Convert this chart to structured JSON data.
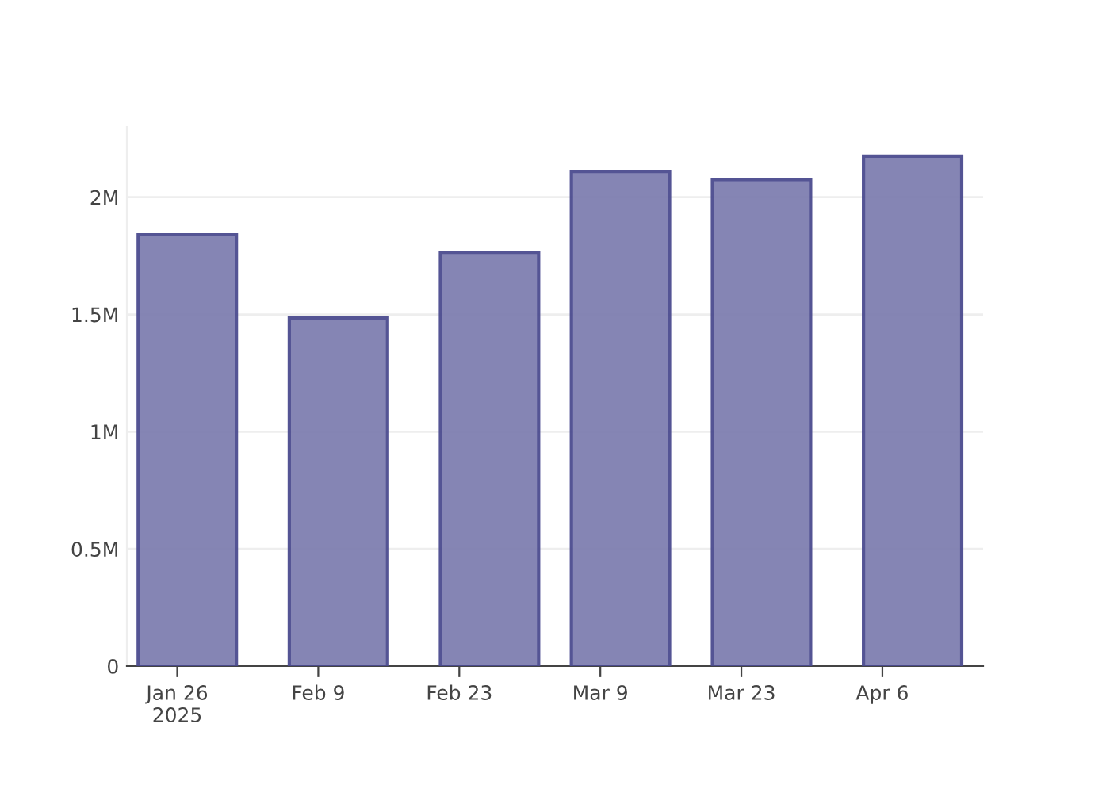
{
  "chart_data": {
    "type": "bar",
    "x": [
      "2025-01-27",
      "2025-02-11",
      "2025-02-26",
      "2025-03-11",
      "2025-03-25",
      "2025-04-09"
    ],
    "values": [
      1840000,
      1485000,
      1765000,
      2110000,
      2075000,
      2175000
    ],
    "color": "#7f7fb0",
    "xlim": [
      "2025-01-21",
      "2025-04-16"
    ],
    "xticks": [
      {
        "value": "2025-01-26",
        "label": "Jan 26\n2025"
      },
      {
        "value": "2025-02-09",
        "label": "Feb 9"
      },
      {
        "value": "2025-02-23",
        "label": "Feb 23"
      },
      {
        "value": "2025-03-09",
        "label": "Mar 9"
      },
      {
        "value": "2025-03-23",
        "label": "Mar 23"
      },
      {
        "value": "2025-04-06",
        "label": "Apr 6"
      }
    ],
    "ylim": [
      0,
      2300000
    ],
    "yticks": [
      {
        "value": 0,
        "label": "0"
      },
      {
        "value": 500000,
        "label": "0.5M"
      },
      {
        "value": 1000000,
        "label": "1M"
      },
      {
        "value": 1500000,
        "label": "1.5M"
      },
      {
        "value": 2000000,
        "label": "2M"
      }
    ],
    "grid": "y"
  }
}
